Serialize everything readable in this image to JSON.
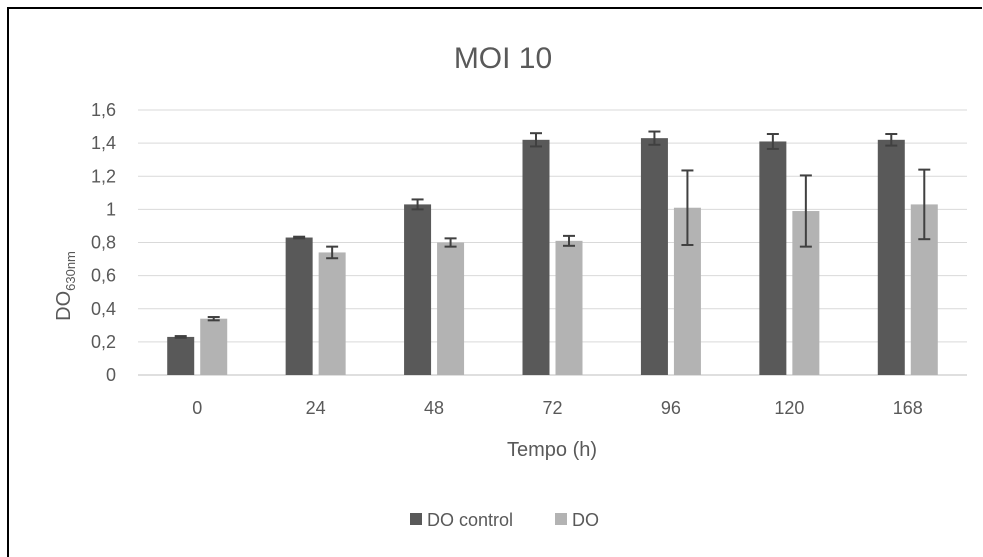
{
  "chart_data": {
    "type": "bar",
    "title": "MOI 10",
    "xlabel": "Tempo (h)",
    "ylabel": "DO",
    "ylabel_sub": "630nm",
    "categories": [
      "0",
      "24",
      "48",
      "72",
      "96",
      "120",
      "168"
    ],
    "ylim": [
      0,
      1.6
    ],
    "yticks": [
      "0",
      "0,2",
      "0,4",
      "0,6",
      "0,8",
      "1",
      "1,2",
      "1,4",
      "1,6"
    ],
    "grid": true,
    "legend_position": "bottom",
    "series": [
      {
        "name": "DO control",
        "color": "#595959",
        "values": [
          0.23,
          0.83,
          1.03,
          1.42,
          1.43,
          1.41,
          1.42
        ],
        "errors": [
          0.005,
          0.005,
          0.03,
          0.04,
          0.04,
          0.045,
          0.035
        ]
      },
      {
        "name": "DO",
        "color": "#b3b3b3",
        "values": [
          0.34,
          0.74,
          0.8,
          0.81,
          1.01,
          0.99,
          1.03
        ],
        "errors": [
          0.01,
          0.035,
          0.025,
          0.03,
          0.225,
          0.215,
          0.21
        ]
      }
    ]
  }
}
